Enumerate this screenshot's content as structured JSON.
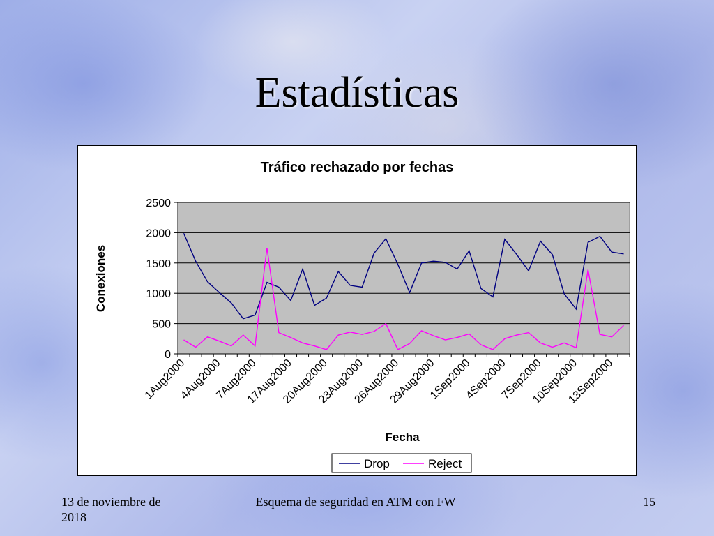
{
  "slide": {
    "title": "Estadísticas",
    "footer_date": "13 de noviembre de 2018",
    "footer_center": "Esquema de seguridad en ATM con FW",
    "page_number": "15"
  },
  "chart_data": {
    "type": "line",
    "title": "Tráfico rechazado por fechas",
    "xlabel": "Fecha",
    "ylabel": "Conexiones",
    "ylim": [
      0,
      2500
    ],
    "yticks": [
      0,
      500,
      1000,
      1500,
      2000,
      2500
    ],
    "grid": true,
    "legend": "bottom",
    "plot_background": "#c0c0c0",
    "x_tick_labels": [
      "1Aug2000",
      "4Aug2000",
      "7Aug2000",
      "17Aug2000",
      "20Aug2000",
      "23Aug2000",
      "26Aug2000",
      "29Aug2000",
      "1Sep2000",
      "4Sep2000",
      "7Sep2000",
      "10Sep2000",
      "13Sep2000"
    ],
    "series": [
      {
        "name": "Drop",
        "color": "#000080",
        "values": [
          1990,
          1530,
          1190,
          1010,
          840,
          580,
          640,
          1180,
          1100,
          880,
          1400,
          800,
          920,
          1360,
          1130,
          1100,
          1660,
          1900,
          1480,
          1010,
          1500,
          1530,
          1510,
          1400,
          1700,
          1080,
          940,
          1890,
          1640,
          1370,
          1860,
          1640,
          990,
          740,
          1840,
          1940,
          1680,
          1650
        ]
      },
      {
        "name": "Reject",
        "color": "#ff00ff",
        "values": [
          230,
          110,
          280,
          210,
          130,
          310,
          130,
          1750,
          350,
          270,
          180,
          130,
          70,
          310,
          360,
          320,
          370,
          500,
          70,
          170,
          380,
          300,
          230,
          270,
          330,
          150,
          70,
          250,
          310,
          350,
          180,
          110,
          180,
          100,
          1390,
          320,
          280,
          470
        ]
      }
    ]
  }
}
